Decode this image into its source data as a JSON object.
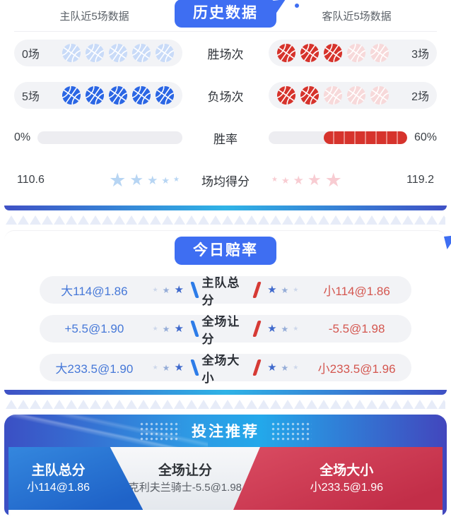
{
  "icons": {
    "star": "★",
    "basketball": "basketball-icon"
  },
  "colors": {
    "brand_blue": "#3e6ef2",
    "home_blue": "#2b66e4",
    "home_blue_faded": "#c9dbf8",
    "away_red": "#d6332c",
    "away_red_faded": "#f7d9da",
    "odds_home_text": "#4678d8",
    "odds_away_text": "#d4564f",
    "edge_gradient": [
      "#3f51c5",
      "#2fb3e6"
    ]
  },
  "history": {
    "badge": "历史数据",
    "home_header": "主队近5场数据",
    "away_header": "客队近5场数据",
    "rows": [
      {
        "type": "balls",
        "label": "胜场次",
        "home_text": "0场",
        "home_filled": 0,
        "home_total": 5,
        "away_filled": 3,
        "away_total": 5,
        "away_text": "3场"
      },
      {
        "type": "balls",
        "label": "负场次",
        "home_text": "5场",
        "home_filled": 5,
        "home_total": 5,
        "away_filled": 2,
        "away_total": 5,
        "away_text": "2场"
      },
      {
        "type": "bar",
        "label": "胜率",
        "home_text": "0%",
        "home_percent": 0,
        "away_percent": 60,
        "away_text": "60%"
      },
      {
        "type": "stars",
        "label": "场均得分",
        "home_text": "110.6",
        "home_count": 5,
        "away_count": 5,
        "away_text": "119.2"
      }
    ]
  },
  "odds": {
    "badge": "今日赔率",
    "rows": [
      {
        "home": "大114@1.86",
        "label": "主队总分",
        "away": "小114@1.86"
      },
      {
        "home": "+5.5@1.90",
        "label": "全场让分",
        "away": "-5.5@1.98"
      },
      {
        "home": "大233.5@1.90",
        "label": "全场大小",
        "away": "小233.5@1.96"
      }
    ]
  },
  "recommend": {
    "title": "投注推荐",
    "panels": [
      {
        "style": "home",
        "title": "主队总分",
        "value": "小114@1.86"
      },
      {
        "style": "neutral",
        "title": "全场让分",
        "value": "克利夫兰骑士-5.5@1.98"
      },
      {
        "style": "away",
        "title": "全场大小",
        "value": "小233.5@1.96"
      }
    ]
  }
}
